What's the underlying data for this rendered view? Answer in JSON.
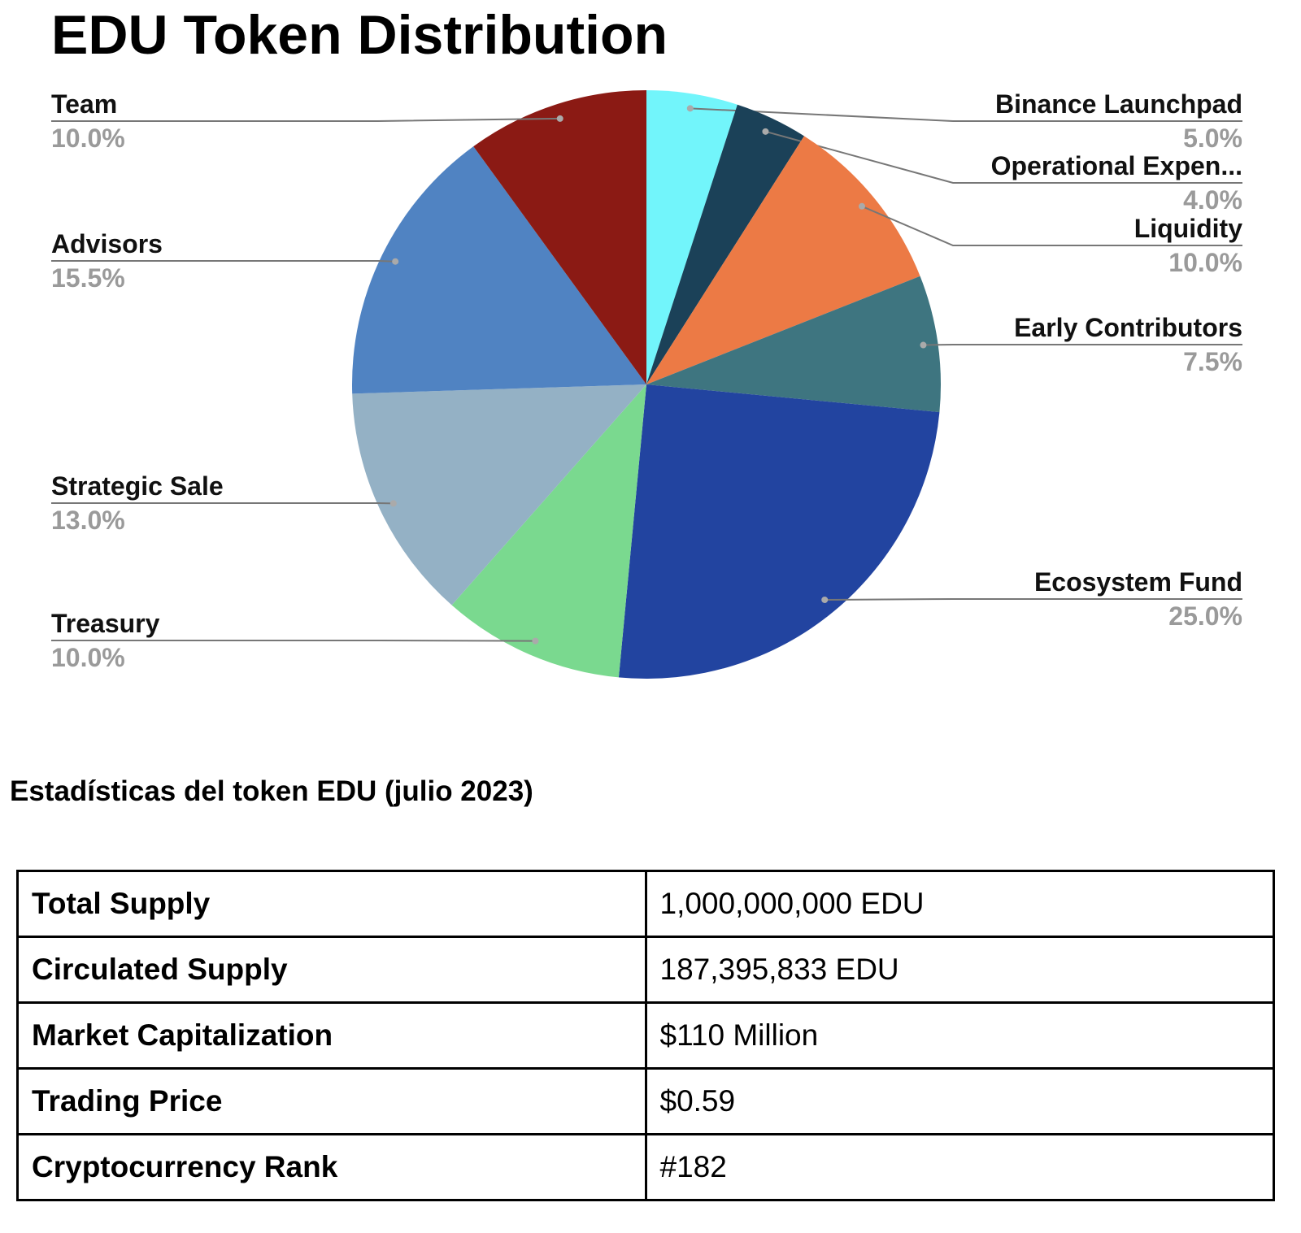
{
  "chart_data": {
    "type": "pie",
    "title": "EDU Token Distribution",
    "categories": [
      "Binance Launchpad",
      "Operational Expen...",
      "Liquidity",
      "Early Contributors",
      "Ecosystem Fund",
      "Treasury",
      "Strategic Sale",
      "Advisors",
      "Team"
    ],
    "values": [
      5.0,
      4.0,
      10.0,
      7.5,
      25.0,
      10.0,
      13.0,
      15.5,
      10.0
    ],
    "value_labels": [
      "5.0%",
      "4.0%",
      "10.0%",
      "7.5%",
      "25.0%",
      "10.0%",
      "13.0%",
      "15.5%",
      "10.0%"
    ],
    "colors": [
      "#72f5fb",
      "#1b4158",
      "#ec7a45",
      "#3e7580",
      "#2244a0",
      "#7ad98f",
      "#94b1c5",
      "#5083c2",
      "#8b1a14"
    ]
  },
  "stats": {
    "heading": "Estadísticas del token EDU (julio 2023)",
    "rows": [
      [
        "Total Supply",
        "1,000,000,000 EDU"
      ],
      [
        "Circulated Supply",
        "187,395,833 EDU"
      ],
      [
        "Market Capitalization",
        "$110 Million"
      ],
      [
        "Trading Price",
        "$0.59"
      ],
      [
        "Cryptocurrency Rank",
        "#182"
      ]
    ]
  }
}
